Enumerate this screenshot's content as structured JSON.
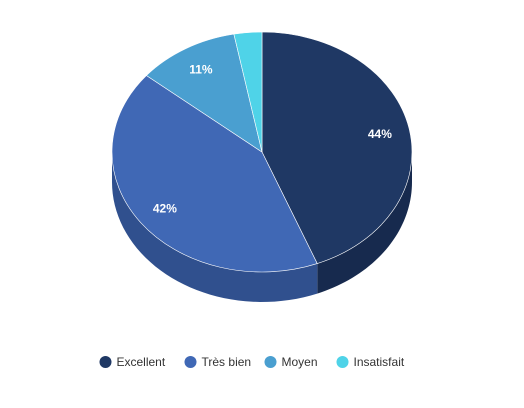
{
  "chart_data": {
    "type": "pie",
    "style": "3d",
    "legend_position": "bottom",
    "categories": [
      "Excellent",
      "Très bien",
      "Moyen",
      "Insatisfait"
    ],
    "values": [
      44,
      42,
      11,
      3
    ],
    "data_labels": [
      "44%",
      "42%",
      "11%",
      ""
    ],
    "colors": [
      "#1f3864",
      "#4068b5",
      "#4a9fd0",
      "#4fd3e8"
    ],
    "side_colors": [
      "#172a4e",
      "#30508e",
      "#3a7fa8",
      "#3aaabe"
    ]
  }
}
